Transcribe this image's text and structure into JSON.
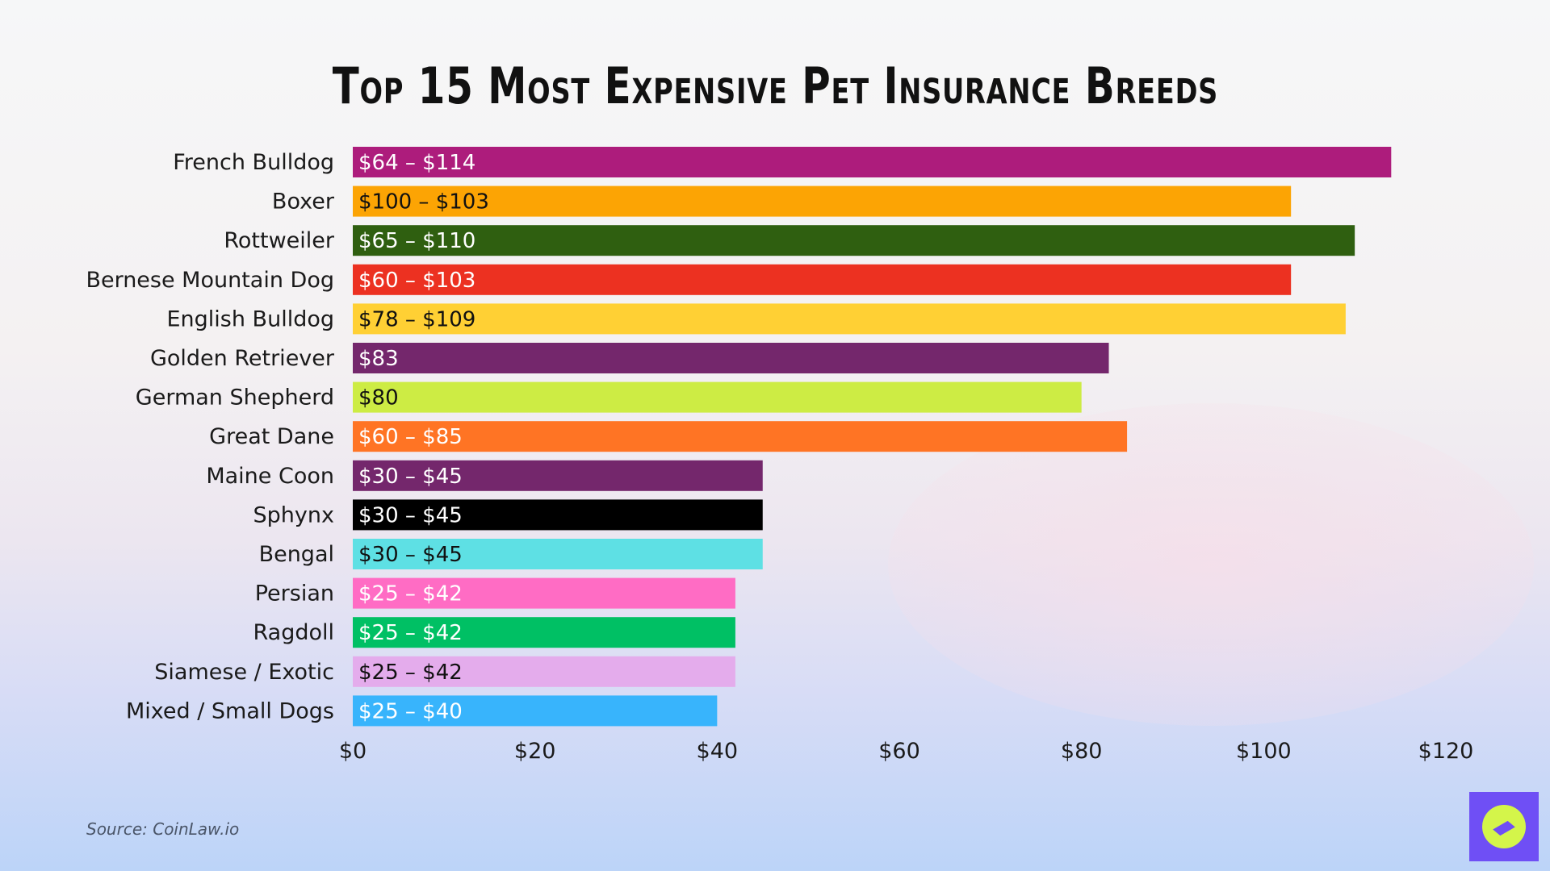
{
  "chart_data": {
    "type": "bar",
    "orientation": "horizontal",
    "title": "Top 15 Most Expensive Pet Insurance Breeds",
    "categories": [
      "French Bulldog",
      "Boxer",
      "Rottweiler",
      "Bernese Mountain Dog",
      "English Bulldog",
      "Golden Retriever",
      "German Shepherd",
      "Great Dane",
      "Maine Coon",
      "Sphynx",
      "Bengal",
      "Persian",
      "Ragdoll",
      "Siamese / Exotic",
      "Mixed / Small Dogs"
    ],
    "values": [
      114,
      103,
      110,
      103,
      109,
      83,
      80,
      85,
      45,
      45,
      45,
      42,
      42,
      42,
      40
    ],
    "data_labels": [
      "$64 – $114",
      "$100 – $103",
      "$65 – $110",
      "$60 – $103",
      "$78 – $109",
      "$83",
      "$80",
      "$60 – $85",
      "$30 – $45",
      "$30 – $45",
      "$30 – $45",
      "$25 – $42",
      "$25 – $42",
      "$25 – $42",
      "$25 – $40"
    ],
    "colors": [
      "#ad1c7c",
      "#fca404",
      "#2f5f10",
      "#ec3121",
      "#ffd034",
      "#74276c",
      "#cdec44",
      "#ff7424",
      "#74276c",
      "#000000",
      "#5ee0e4",
      "#ff6cc4",
      "#00c064",
      "#e4acec",
      "#38b4fc"
    ],
    "label_colors": [
      "#ffffff",
      "#111111",
      "#ffffff",
      "#ffffff",
      "#111111",
      "#ffffff",
      "#111111",
      "#ffffff",
      "#ffffff",
      "#ffffff",
      "#111111",
      "#ffffff",
      "#ffffff",
      "#111111",
      "#ffffff"
    ],
    "xlim": [
      0,
      120
    ],
    "xticks": [
      "$0",
      "$20",
      "$40",
      "$60",
      "$80",
      "$100",
      "$120"
    ],
    "grid": false,
    "legend": "none"
  },
  "source": "Source: CoinLaw.io",
  "logo": "compass-logo"
}
